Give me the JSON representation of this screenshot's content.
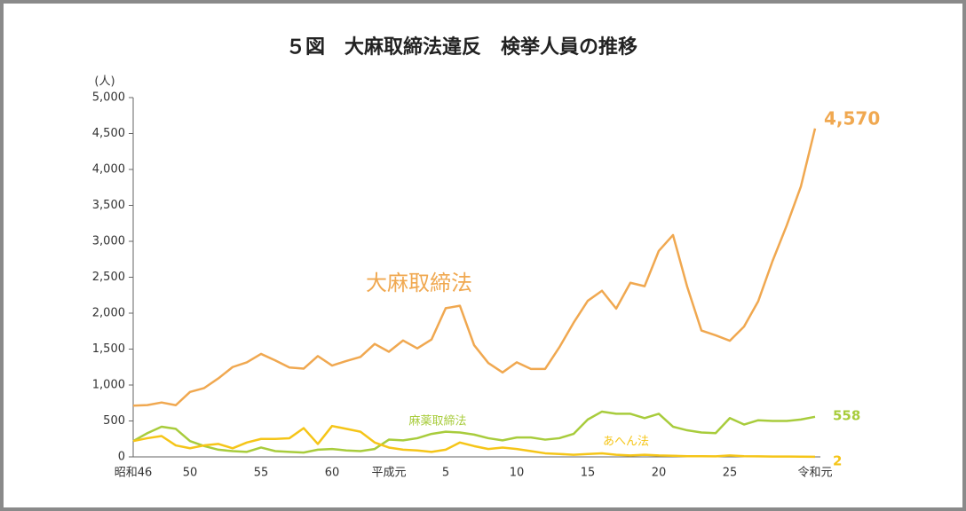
{
  "chart_data": {
    "type": "line",
    "title": "５図　大麻取締法違反　検挙人員の推移",
    "y_label": "(人)",
    "categories": [
      "昭和46",
      null,
      null,
      null,
      "50",
      null,
      null,
      null,
      null,
      "55",
      null,
      null,
      null,
      null,
      "60",
      null,
      null,
      null,
      "平成元",
      null,
      null,
      null,
      "5",
      null,
      null,
      null,
      null,
      "10",
      null,
      null,
      null,
      null,
      "15",
      null,
      null,
      null,
      null,
      "20",
      null,
      null,
      null,
      null,
      "25",
      null,
      null,
      null,
      null,
      null,
      "令和元"
    ],
    "ylim": [
      0,
      5000
    ],
    "yticks": [
      0,
      500,
      {
        "value": 1000,
        "label": "1,000"
      },
      {
        "value": 1500,
        "label": "1,500"
      },
      {
        "value": 2000,
        "label": "2,000"
      },
      {
        "value": 2500,
        "label": "2,500"
      },
      {
        "value": 3000,
        "label": "3,000"
      },
      {
        "value": 3500,
        "label": "3,500"
      },
      {
        "value": 4000,
        "label": "4,000"
      },
      {
        "value": 4500,
        "label": "4,500"
      },
      {
        "value": 5000,
        "label": "5,000"
      }
    ],
    "series": [
      {
        "name": "大麻取締法",
        "color": "#f0a850",
        "values": [
          713,
          721,
          757,
          719,
          904,
          958,
          1093,
          1250,
          1315,
          1433,
          1343,
          1244,
          1228,
          1403,
          1271,
          1334,
          1391,
          1572,
          1463,
          1620,
          1510,
          1633,
          2069,
          2103,
          1555,
          1306,
          1175,
          1316,
          1224,
          1224,
          1525,
          1866,
          2172,
          2312,
          2063,
          2423,
          2375,
          2867,
          3087,
          2367,
          1759,
          1692,
          1616,
          1813,
          2167,
          2722,
          3218,
          3762,
          4570
        ],
        "value_labels": [
          null,
          null,
          null,
          null,
          null,
          null,
          null,
          null,
          null,
          null,
          null,
          null,
          null,
          null,
          null,
          null,
          null,
          null,
          null,
          null,
          null,
          null,
          null,
          null,
          null,
          null,
          null,
          null,
          null,
          null,
          null,
          null,
          null,
          null,
          null,
          null,
          null,
          null,
          null,
          null,
          null,
          null,
          null,
          null,
          null,
          null,
          null,
          null,
          "4,570"
        ]
      },
      {
        "name": "麻薬取締法",
        "color": "#a8cc3c",
        "values": [
          220,
          330,
          420,
          390,
          220,
          150,
          100,
          80,
          70,
          130,
          80,
          70,
          60,
          100,
          110,
          90,
          80,
          110,
          240,
          230,
          260,
          320,
          350,
          340,
          310,
          260,
          230,
          270,
          270,
          240,
          260,
          320,
          520,
          630,
          600,
          600,
          540,
          600,
          420,
          370,
          340,
          330,
          540,
          450,
          510,
          500,
          500,
          520,
          558
        ]
      },
      {
        "name": "あへん法",
        "color": "#f5c518",
        "values": [
          220,
          260,
          290,
          160,
          120,
          160,
          180,
          120,
          200,
          250,
          250,
          260,
          400,
          180,
          430,
          390,
          350,
          200,
          130,
          100,
          90,
          70,
          100,
          200,
          150,
          110,
          130,
          110,
          80,
          50,
          40,
          30,
          40,
          50,
          30,
          20,
          30,
          20,
          15,
          10,
          10,
          8,
          20,
          10,
          8,
          5,
          5,
          3,
          2
        ]
      }
    ]
  }
}
